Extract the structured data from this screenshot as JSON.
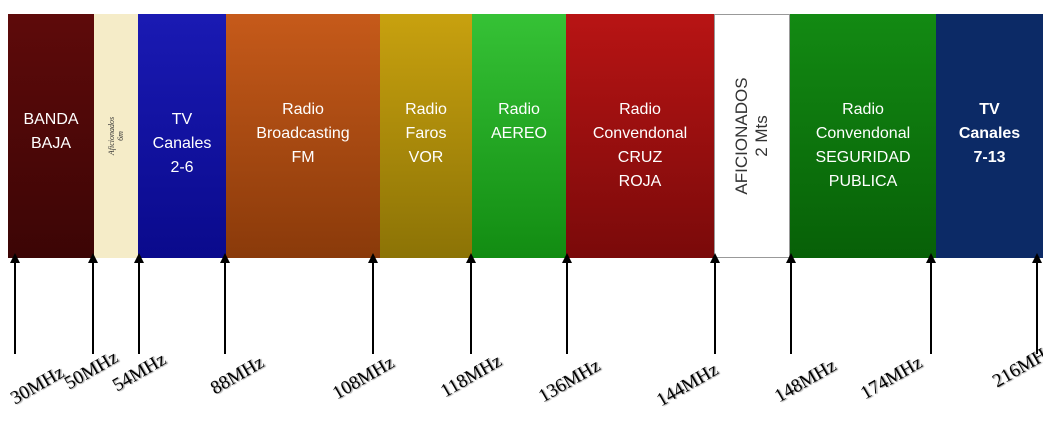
{
  "bands": [
    {
      "key": "banda-baja",
      "label": "BANDA\nBAJA",
      "bg": "linear-gradient(180deg,#5e0a0a,#3c0505)"
    },
    {
      "key": "aficionados-6m",
      "label": "Aficionados\n6m",
      "bg": "#f5ecc8",
      "vertical": true
    },
    {
      "key": "tv-2-6",
      "label": "TV\nCanales\n2-6",
      "bg": "linear-gradient(180deg,#1a1ab3,#0a0a8c)"
    },
    {
      "key": "fm",
      "label": "Radio\nBroadcasting\nFM",
      "bg": "linear-gradient(180deg,#c65a1a,#8a3a0a)"
    },
    {
      "key": "vor",
      "label": "Radio\nFaros\nVOR",
      "bg": "linear-gradient(180deg,#c8a10f,#8c7306)"
    },
    {
      "key": "aereo",
      "label": "Radio\nAEREO",
      "bg": "linear-gradient(180deg,#36c236,#128c12)"
    },
    {
      "key": "cruz-roja",
      "label": "Radio\nConvendonal\nCRUZ\nROJA",
      "bg": "linear-gradient(180deg,#b81414,#7a0a0a)"
    },
    {
      "key": "aficionados-2m",
      "label": "AFICIONADOS\n2 Mts",
      "bg": "#ffffff",
      "vertical": true
    },
    {
      "key": "seguridad",
      "label": "Radio\nConvendonal\nSEGURIDAD\nPUBLICA",
      "bg": "linear-gradient(180deg,#138a13,#076007)"
    },
    {
      "key": "tv-7-13",
      "label": "TV\nCanales\n7-13",
      "bg": "#0c2a66"
    }
  ],
  "frequencies": [
    {
      "key": "30",
      "label": "30MHz"
    },
    {
      "key": "50",
      "label": "50MHz"
    },
    {
      "key": "54",
      "label": "54MHz"
    },
    {
      "key": "88",
      "label": "88MHz"
    },
    {
      "key": "108",
      "label": "108MHz"
    },
    {
      "key": "118",
      "label": "118MHz"
    },
    {
      "key": "136",
      "label": "136MHz"
    },
    {
      "key": "144",
      "label": "144MHz"
    },
    {
      "key": "148",
      "label": "148MHz"
    },
    {
      "key": "174",
      "label": "174MHz"
    },
    {
      "key": "216",
      "label": "216MH"
    }
  ]
}
